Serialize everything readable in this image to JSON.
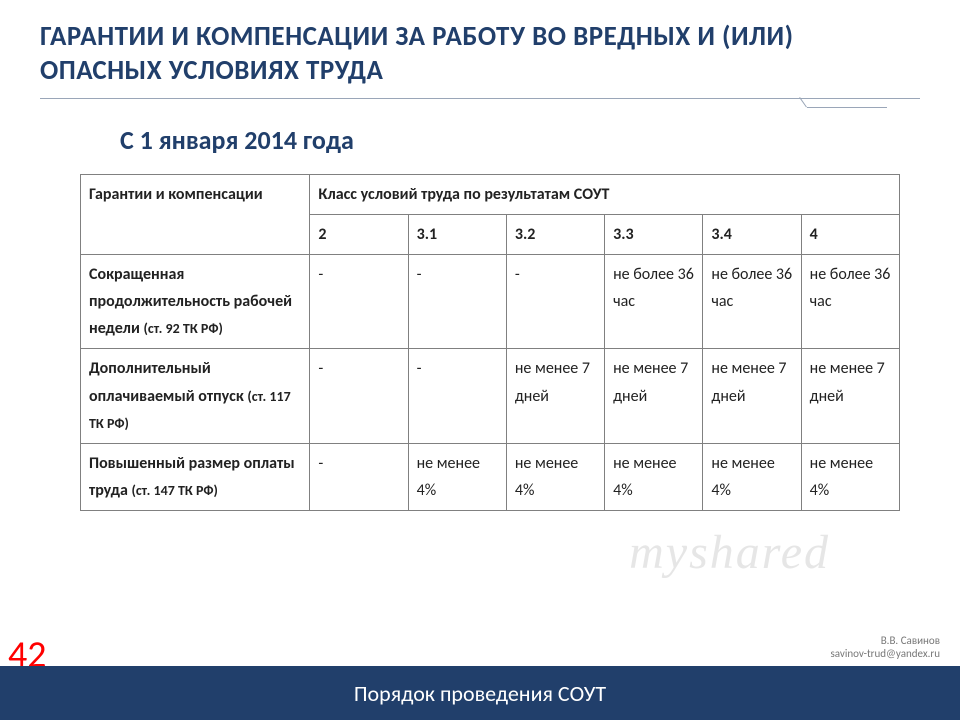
{
  "colors": {
    "primary": "#213f6b",
    "border": "#808080",
    "divider": "#9aa6b8",
    "page_num": "#ff0000",
    "footer_bg": "#213f6b",
    "footer_text": "#ffffff",
    "text": "#222222",
    "watermark": "#777777",
    "mp_watermark": "rgba(200,200,200,0.45)",
    "background": "#ffffff"
  },
  "title": "ГАРАНТИИ И КОМПЕНСАЦИИ ЗА РАБОТУ ВО ВРЕДНЫХ И (ИЛИ) ОПАСНЫХ УСЛОВИЯХ ТРУДА",
  "subtitle": "С 1 января 2014 года",
  "footer_title": "Порядок проведения СОУТ",
  "page_number": "42",
  "author_line1": "В.В. Савинов",
  "author_line2": "savinov-trud@yandex.ru",
  "mp_text": "myshared",
  "table": {
    "header_left": "Гарантии и компенсации",
    "header_right": "Класс условий труда по результатам СОУТ",
    "classes": [
      "2",
      "3.1",
      "3.2",
      "3.3",
      "3.4",
      "4"
    ],
    "rows": [
      {
        "label_main": "Сокращенная продолжительность рабочей недели ",
        "label_ref": "(ст. 92 ТК РФ)",
        "cells": [
          "-",
          "-",
          "-",
          "не более 36 час",
          "не более 36 час",
          "не более 36 час"
        ]
      },
      {
        "label_main": "Дополнительный оплачиваемый отпуск ",
        "label_ref": "(ст. 117 ТК РФ)",
        "cells": [
          "-",
          "-",
          "не менее 7 дней",
          "не менее 7 дней",
          "не менее 7 дней",
          "не менее 7 дней"
        ]
      },
      {
        "label_main": "Повышенный размер оплаты труда ",
        "label_ref": "(ст. 147 ТК РФ)",
        "cells": [
          "-",
          "не менее 4%",
          "не менее 4%",
          "не менее 4%",
          "не менее 4%",
          "не менее 4%"
        ]
      }
    ]
  }
}
